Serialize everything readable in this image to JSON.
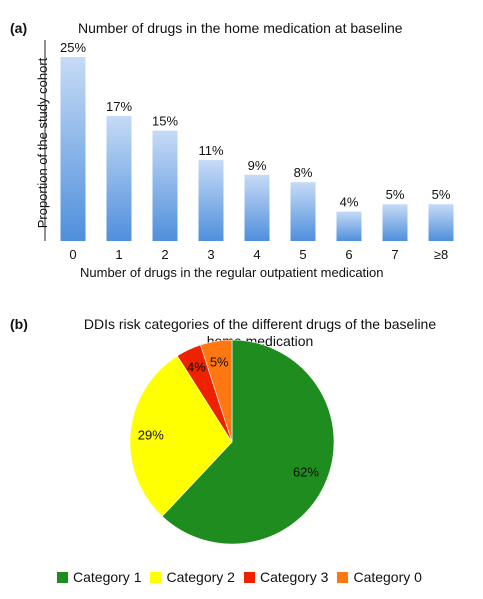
{
  "chart_data": [
    {
      "type": "bar",
      "panel_label": "(a)",
      "title": "Number of drugs in the home medication at baseline",
      "xlabel": "Number of drugs in the regular outpatient medication",
      "ylabel": "Proportion of the study cohort",
      "categories": [
        "0",
        "1",
        "2",
        "3",
        "4",
        "5",
        "6",
        "7",
        "≥8"
      ],
      "values": [
        25,
        17,
        15,
        11,
        9,
        8,
        4,
        5,
        5
      ],
      "value_labels": [
        "25%",
        "17%",
        "15%",
        "11%",
        "9%",
        "8%",
        "4%",
        "5%",
        "5%"
      ],
      "ylim": [
        0,
        25
      ],
      "grid": false,
      "colors": {
        "bar_top": "#c6dbf6",
        "bar_bottom": "#4f8fdc"
      }
    },
    {
      "type": "pie",
      "panel_label": "(b)",
      "title_lines": [
        "DDIs risk categories of the different drugs of the baseline",
        "home medication"
      ],
      "categories": [
        "Category 1",
        "Category 2",
        "Category 3",
        "Category 0"
      ],
      "values": [
        62,
        29,
        4,
        5
      ],
      "value_labels": [
        "62%",
        "29%",
        "4%",
        "5%"
      ],
      "colors": [
        "#1e8c1e",
        "#ffff00",
        "#ee2200",
        "#ff7711"
      ],
      "legend_placement": "bottom"
    }
  ]
}
